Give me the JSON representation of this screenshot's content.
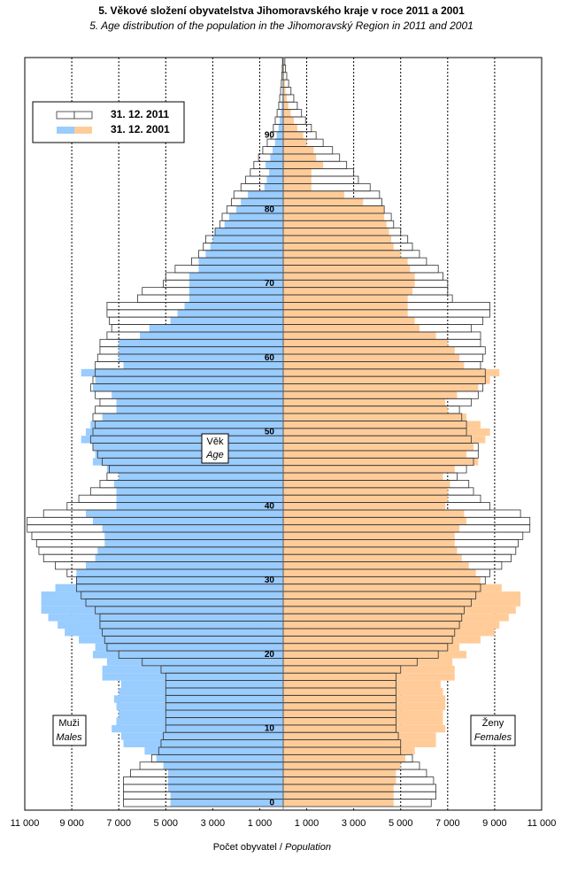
{
  "chart_data": {
    "type": "pyramid",
    "title": "5. Věkové složení obyvatelstva  Jihomoravského  kraje v roce 2011 a 2001",
    "subtitle": "5. Age distribution of the population  in the Jihomoravský Region  in 2011  and 2001",
    "x_label": "Počet obyvatel /",
    "x_label_en": "Population",
    "y_label": "Věk",
    "y_label_en": "Age",
    "left_label": "Muži",
    "left_label_en": "Males",
    "right_label": "Ženy",
    "right_label_en": "Females",
    "legend": "top-left",
    "grid": true,
    "xlim": [
      -11000,
      11000
    ],
    "xticks": [
      {
        "value": -11000,
        "label": "11 000"
      },
      {
        "value": -9000,
        "label": "9 000"
      },
      {
        "value": -7000,
        "label": "7 000"
      },
      {
        "value": -5000,
        "label": "5 000"
      },
      {
        "value": -3000,
        "label": "3 000"
      },
      {
        "value": -1000,
        "label": "1 000"
      },
      {
        "value": 1000,
        "label": "1 000"
      },
      {
        "value": 3000,
        "label": "3 000"
      },
      {
        "value": 5000,
        "label": "5 000"
      },
      {
        "value": 7000,
        "label": "7 000"
      },
      {
        "value": 9000,
        "label": "9 000"
      },
      {
        "value": 11000,
        "label": "11 000"
      }
    ],
    "categories": [
      0,
      null,
      null,
      null,
      null,
      null,
      null,
      null,
      null,
      null,
      10,
      null,
      null,
      null,
      null,
      null,
      null,
      null,
      null,
      null,
      20,
      null,
      null,
      null,
      null,
      null,
      null,
      null,
      null,
      null,
      30,
      null,
      null,
      null,
      null,
      null,
      null,
      null,
      null,
      null,
      40,
      null,
      null,
      null,
      null,
      null,
      null,
      null,
      null,
      null,
      50,
      null,
      null,
      null,
      null,
      null,
      null,
      null,
      null,
      null,
      60,
      null,
      null,
      null,
      null,
      null,
      null,
      null,
      null,
      null,
      70,
      null,
      null,
      null,
      null,
      null,
      null,
      null,
      null,
      null,
      80,
      null,
      null,
      null,
      null,
      null,
      null,
      null,
      null,
      null,
      90,
      null,
      null,
      null,
      null,
      null,
      null,
      null,
      null,
      null,
      null
    ],
    "series": [
      {
        "name": "31. 12. 2001",
        "male_color": "#99ccff",
        "female_color": "#ffcc99",
        "outline": false,
        "male_values": [
          -4800,
          -4800,
          -4900,
          -4900,
          -4900,
          -5100,
          -5400,
          -5900,
          -6800,
          -6900,
          -7300,
          -7100,
          -7000,
          -7100,
          -7200,
          -7000,
          -6900,
          -7700,
          -7700,
          -7500,
          -8100,
          -8000,
          -8700,
          -9300,
          -9600,
          -10000,
          -10300,
          -10300,
          -10300,
          -9700,
          -8800,
          -8800,
          -8400,
          -8000,
          -7900,
          -7600,
          -7600,
          -7700,
          -8100,
          -8400,
          -7100,
          -7100,
          -7100,
          -7200,
          -7000,
          -7500,
          -8100,
          -8000,
          -8100,
          -8600,
          -8400,
          -8200,
          -7700,
          -7100,
          -7100,
          -7300,
          -8100,
          -8000,
          -8600,
          -6800,
          -7000,
          -7000,
          -7000,
          -6100,
          -5700,
          -4800,
          -4500,
          -4200,
          -4000,
          -4000,
          -4000,
          -4000,
          -3600,
          -3600,
          -3300,
          -3100,
          -3000,
          -2900,
          -2500,
          -2300,
          -2000,
          -1800,
          -1500,
          -800,
          -700,
          -600,
          -750,
          -550,
          -450,
          -350,
          -280,
          -200,
          -150,
          -100,
          -70,
          -50,
          -30,
          -20,
          -10,
          -8,
          -5
        ],
        "female_values": [
          4700,
          4700,
          4700,
          4800,
          4800,
          5000,
          5200,
          5600,
          6500,
          6500,
          6900,
          6800,
          6800,
          6900,
          6900,
          6800,
          6700,
          7300,
          7300,
          7200,
          7800,
          7500,
          8400,
          9000,
          9200,
          9600,
          9900,
          10100,
          10100,
          9300,
          8400,
          8200,
          7900,
          7600,
          7400,
          7300,
          7300,
          7500,
          7800,
          7700,
          6900,
          7000,
          7000,
          7100,
          6800,
          7300,
          8300,
          7800,
          8100,
          8600,
          8800,
          8400,
          7800,
          7000,
          6900,
          7400,
          8300,
          8800,
          9200,
          7700,
          7500,
          7300,
          7000,
          6500,
          5800,
          5600,
          5300,
          5300,
          5300,
          5500,
          5600,
          5600,
          5400,
          5300,
          5000,
          4700,
          4600,
          4500,
          4400,
          4300,
          4300,
          3400,
          2600,
          1200,
          1200,
          1200,
          1700,
          1400,
          1300,
          1000,
          850,
          600,
          450,
          320,
          220,
          150,
          100,
          70,
          40,
          25,
          15
        ]
      },
      {
        "name": "31. 12. 2011",
        "male_color": "#ffffff",
        "female_color": "#ffffff",
        "outline": true,
        "male_values": [
          -6800,
          -6800,
          -6800,
          -6800,
          -6500,
          -6100,
          -5600,
          -5300,
          -5200,
          -5100,
          -5000,
          -5000,
          -5000,
          -5000,
          -5000,
          -5000,
          -5000,
          -5000,
          -5200,
          -6000,
          -7000,
          -7500,
          -7600,
          -7700,
          -7800,
          -7800,
          -8000,
          -8400,
          -8600,
          -8800,
          -8800,
          -9200,
          -9700,
          -10200,
          -10400,
          -10500,
          -10700,
          -10900,
          -10900,
          -10200,
          -9200,
          -8700,
          -8200,
          -7800,
          -7500,
          -7400,
          -7700,
          -7900,
          -8100,
          -8200,
          -8100,
          -8000,
          -8100,
          -8000,
          -7800,
          -8000,
          -8200,
          -8100,
          -8000,
          -8000,
          -7900,
          -7800,
          -7800,
          -7500,
          -7300,
          -7400,
          -7500,
          -7500,
          -6200,
          -6000,
          -5100,
          -5000,
          -4600,
          -3900,
          -3600,
          -3400,
          -3300,
          -2900,
          -2700,
          -2600,
          -2400,
          -2200,
          -2100,
          -1800,
          -1600,
          -1400,
          -1250,
          -1050,
          -870,
          -680,
          -530,
          -420,
          -340,
          -260,
          -190,
          -150,
          -110,
          -80,
          -60,
          -40,
          -30
        ],
        "female_values": [
          6300,
          6500,
          6500,
          6400,
          6100,
          5800,
          5500,
          5000,
          5000,
          4900,
          4800,
          4800,
          4800,
          4800,
          4800,
          4800,
          4800,
          4800,
          5000,
          5700,
          6600,
          7000,
          7200,
          7300,
          7500,
          7600,
          7700,
          8000,
          8200,
          8400,
          8600,
          8800,
          9300,
          9700,
          9900,
          10000,
          10200,
          10500,
          10500,
          10100,
          8800,
          8400,
          8100,
          7900,
          7400,
          7800,
          8100,
          8300,
          8300,
          8000,
          7800,
          7800,
          7600,
          7500,
          8000,
          8300,
          8500,
          8600,
          8600,
          8400,
          8500,
          8600,
          8400,
          8400,
          8000,
          8500,
          8800,
          8800,
          7200,
          7000,
          7000,
          6800,
          6600,
          6100,
          5800,
          5500,
          5300,
          5000,
          4700,
          4600,
          4300,
          4200,
          4100,
          3700,
          3200,
          3000,
          2700,
          2400,
          2100,
          1700,
          1400,
          1200,
          950,
          780,
          600,
          450,
          330,
          230,
          150,
          100,
          70
        ]
      }
    ]
  }
}
